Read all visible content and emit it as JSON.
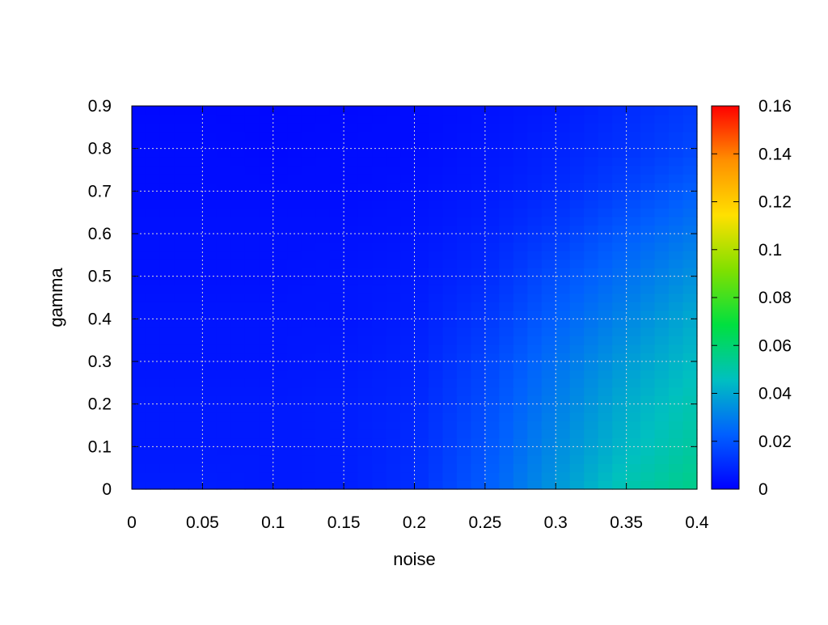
{
  "chart_data": {
    "type": "heatmap",
    "title": "",
    "xlabel": "noise",
    "ylabel": "gamma",
    "xlim": [
      0,
      0.4
    ],
    "ylim": [
      0,
      0.9
    ],
    "x_ticks": [
      "0",
      "0.05",
      "0.1",
      "0.15",
      "0.2",
      "0.25",
      "0.3",
      "0.35",
      "0.4"
    ],
    "y_ticks": [
      "0",
      "0.1",
      "0.2",
      "0.3",
      "0.4",
      "0.5",
      "0.6",
      "0.7",
      "0.8",
      "0.9"
    ],
    "grid": true,
    "colorbar": {
      "range": [
        0,
        0.16
      ],
      "ticks": [
        "0",
        "0.02",
        "0.04",
        "0.06",
        "0.08",
        "0.1",
        "0.12",
        "0.14",
        "0.16"
      ],
      "colormap": [
        "#0000ff",
        "#0060ff",
        "#00c0c0",
        "#00e040",
        "#80e000",
        "#ffe000",
        "#ff9000",
        "#ff0000"
      ]
    },
    "x": [
      0.0,
      0.05,
      0.1,
      0.15,
      0.2,
      0.25,
      0.3,
      0.35,
      0.4
    ],
    "y": [
      0.0,
      0.1,
      0.2,
      0.3,
      0.4,
      0.5,
      0.6,
      0.7,
      0.8,
      0.9
    ],
    "z": [
      [
        0.007,
        0.007,
        0.006,
        0.007,
        0.011,
        0.022,
        0.036,
        0.049,
        0.056
      ],
      [
        0.006,
        0.006,
        0.006,
        0.007,
        0.01,
        0.02,
        0.033,
        0.044,
        0.052
      ],
      [
        0.006,
        0.006,
        0.006,
        0.007,
        0.009,
        0.018,
        0.03,
        0.041,
        0.049
      ],
      [
        0.005,
        0.005,
        0.005,
        0.006,
        0.008,
        0.016,
        0.027,
        0.037,
        0.045
      ],
      [
        0.005,
        0.005,
        0.005,
        0.005,
        0.007,
        0.013,
        0.023,
        0.032,
        0.041
      ],
      [
        0.004,
        0.004,
        0.004,
        0.005,
        0.006,
        0.01,
        0.019,
        0.027,
        0.035
      ],
      [
        0.004,
        0.004,
        0.004,
        0.004,
        0.005,
        0.008,
        0.014,
        0.022,
        0.029
      ],
      [
        0.003,
        0.003,
        0.003,
        0.003,
        0.004,
        0.006,
        0.01,
        0.016,
        0.023
      ],
      [
        0.003,
        0.003,
        0.002,
        0.003,
        0.003,
        0.005,
        0.008,
        0.012,
        0.017
      ],
      [
        0.002,
        0.002,
        0.002,
        0.002,
        0.003,
        0.004,
        0.006,
        0.01,
        0.014
      ]
    ]
  }
}
